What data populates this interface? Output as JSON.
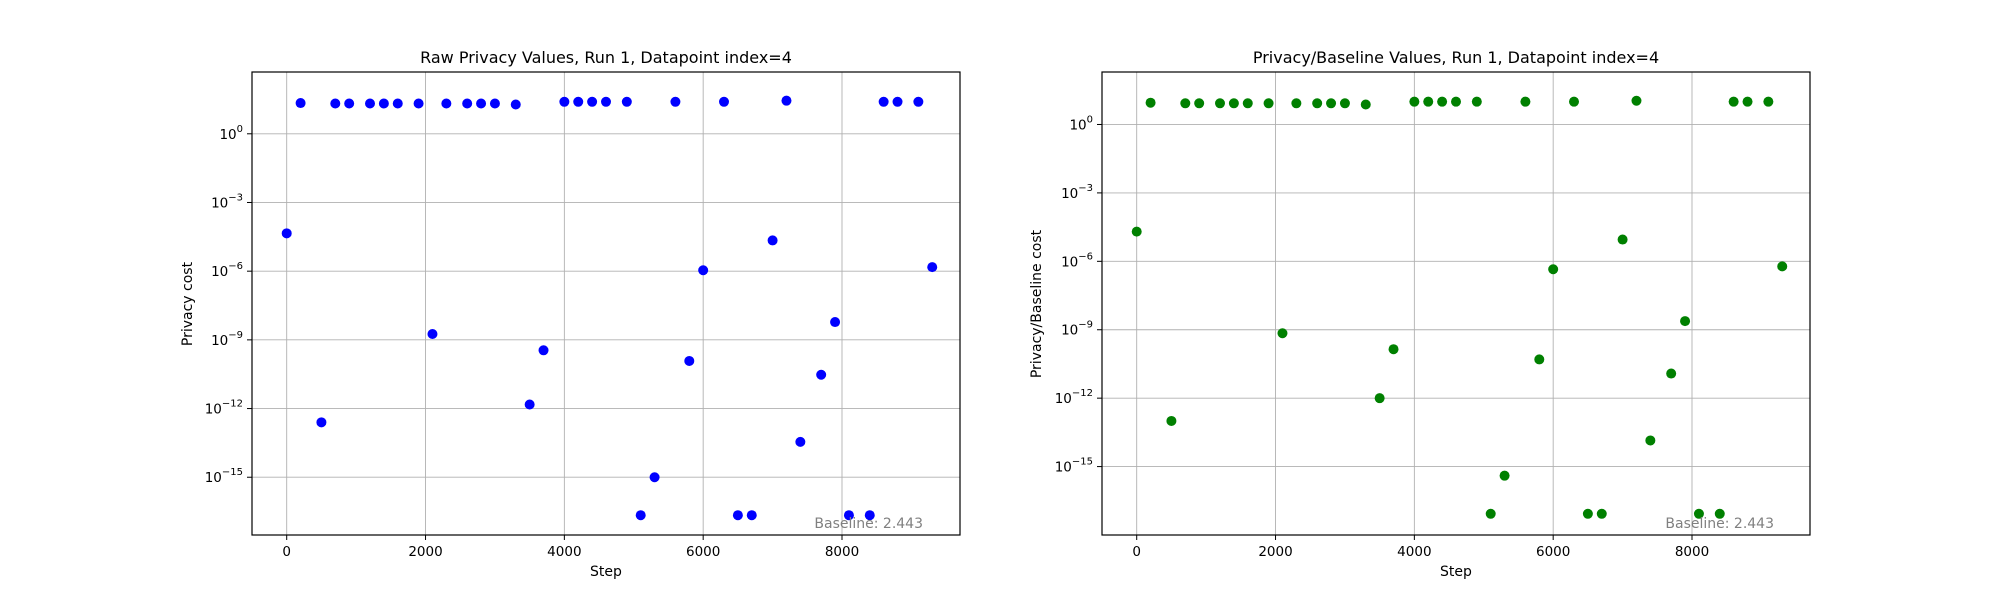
{
  "chart_data": [
    {
      "type": "scatter",
      "title": "Raw Privacy Values, Run 1, Datapoint index=4",
      "xlabel": "Step",
      "ylabel": "Privacy cost",
      "yscale": "log",
      "grid": true,
      "color": "#0000ff",
      "annotation": "Baseline: 2.443",
      "xlim": [
        -500,
        9700
      ],
      "ylim": [
        3e-18,
        500.0
      ],
      "xticks": [
        0,
        2000,
        4000,
        6000,
        8000
      ],
      "xtick_labels": [
        "0",
        "2000",
        "4000",
        "6000",
        "8000"
      ],
      "yticks": [
        1.0,
        0.001,
        1e-06,
        1e-09,
        1e-12,
        1e-15
      ],
      "ytick_labels": [
        {
          "base": "10",
          "exp": "0"
        },
        {
          "base": "10",
          "exp": "−3"
        },
        {
          "base": "10",
          "exp": "−6"
        },
        {
          "base": "10",
          "exp": "−9"
        },
        {
          "base": "10",
          "exp": "−12"
        },
        {
          "base": "10",
          "exp": "−15"
        }
      ],
      "points": [
        {
          "x": 0,
          "y": 4.5e-05
        },
        {
          "x": 200,
          "y": 22
        },
        {
          "x": 500,
          "y": 2.5e-13
        },
        {
          "x": 700,
          "y": 21
        },
        {
          "x": 900,
          "y": 21
        },
        {
          "x": 1200,
          "y": 21
        },
        {
          "x": 1400,
          "y": 21
        },
        {
          "x": 1600,
          "y": 21
        },
        {
          "x": 1900,
          "y": 21
        },
        {
          "x": 2100,
          "y": 1.8e-09
        },
        {
          "x": 2300,
          "y": 21
        },
        {
          "x": 2600,
          "y": 21
        },
        {
          "x": 2800,
          "y": 21
        },
        {
          "x": 3000,
          "y": 21
        },
        {
          "x": 3300,
          "y": 19
        },
        {
          "x": 3500,
          "y": 1.5e-12
        },
        {
          "x": 3700,
          "y": 3.5e-10
        },
        {
          "x": 4000,
          "y": 25
        },
        {
          "x": 4200,
          "y": 25
        },
        {
          "x": 4400,
          "y": 25
        },
        {
          "x": 4600,
          "y": 25
        },
        {
          "x": 4900,
          "y": 25
        },
        {
          "x": 5100,
          "y": 2.2e-17
        },
        {
          "x": 5300,
          "y": 1e-15
        },
        {
          "x": 5600,
          "y": 25
        },
        {
          "x": 5800,
          "y": 1.2e-10
        },
        {
          "x": 6000,
          "y": 1.1e-06
        },
        {
          "x": 6300,
          "y": 25
        },
        {
          "x": 6500,
          "y": 2.2e-17
        },
        {
          "x": 6700,
          "y": 2.2e-17
        },
        {
          "x": 7000,
          "y": 2.2e-05
        },
        {
          "x": 7200,
          "y": 28
        },
        {
          "x": 7400,
          "y": 3.5e-14
        },
        {
          "x": 7700,
          "y": 3e-11
        },
        {
          "x": 7900,
          "y": 6e-09
        },
        {
          "x": 8100,
          "y": 2.2e-17
        },
        {
          "x": 8400,
          "y": 2.2e-17
        },
        {
          "x": 8600,
          "y": 25
        },
        {
          "x": 8800,
          "y": 25
        },
        {
          "x": 9100,
          "y": 25
        },
        {
          "x": 9300,
          "y": 1.5e-06
        }
      ]
    },
    {
      "type": "scatter",
      "title": "Privacy/Baseline Values, Run 1, Datapoint index=4",
      "xlabel": "Step",
      "ylabel": "Privacy/Baseline cost",
      "yscale": "log",
      "grid": true,
      "color": "#008000",
      "annotation": "Baseline: 2.443",
      "xlim": [
        -500,
        9700
      ],
      "ylim": [
        1e-18,
        200.0
      ],
      "xticks": [
        0,
        2000,
        4000,
        6000,
        8000
      ],
      "xtick_labels": [
        "0",
        "2000",
        "4000",
        "6000",
        "8000"
      ],
      "yticks": [
        1.0,
        0.001,
        1e-06,
        1e-09,
        1e-12,
        1e-15
      ],
      "ytick_labels": [
        {
          "base": "10",
          "exp": "0"
        },
        {
          "base": "10",
          "exp": "−3"
        },
        {
          "base": "10",
          "exp": "−6"
        },
        {
          "base": "10",
          "exp": "−9"
        },
        {
          "base": "10",
          "exp": "−12"
        },
        {
          "base": "10",
          "exp": "−15"
        }
      ],
      "points": [
        {
          "x": 0,
          "y": 2e-05
        },
        {
          "x": 200,
          "y": 9
        },
        {
          "x": 500,
          "y": 1e-13
        },
        {
          "x": 700,
          "y": 8.5
        },
        {
          "x": 900,
          "y": 8.5
        },
        {
          "x": 1200,
          "y": 8.5
        },
        {
          "x": 1400,
          "y": 8.5
        },
        {
          "x": 1600,
          "y": 8.5
        },
        {
          "x": 1900,
          "y": 8.5
        },
        {
          "x": 2100,
          "y": 7e-10
        },
        {
          "x": 2300,
          "y": 8.5
        },
        {
          "x": 2600,
          "y": 8.5
        },
        {
          "x": 2800,
          "y": 8.5
        },
        {
          "x": 3000,
          "y": 8.5
        },
        {
          "x": 3300,
          "y": 7.5
        },
        {
          "x": 3500,
          "y": 1e-12
        },
        {
          "x": 3700,
          "y": 1.4e-10
        },
        {
          "x": 4000,
          "y": 10
        },
        {
          "x": 4200,
          "y": 10
        },
        {
          "x": 4400,
          "y": 10
        },
        {
          "x": 4600,
          "y": 10
        },
        {
          "x": 4900,
          "y": 10
        },
        {
          "x": 5100,
          "y": 8.5e-18
        },
        {
          "x": 5300,
          "y": 4e-16
        },
        {
          "x": 5600,
          "y": 10
        },
        {
          "x": 5800,
          "y": 5e-11
        },
        {
          "x": 6000,
          "y": 4.5e-07
        },
        {
          "x": 6300,
          "y": 10
        },
        {
          "x": 6500,
          "y": 8.5e-18
        },
        {
          "x": 6700,
          "y": 8.5e-18
        },
        {
          "x": 7000,
          "y": 9e-06
        },
        {
          "x": 7200,
          "y": 11
        },
        {
          "x": 7400,
          "y": 1.4e-14
        },
        {
          "x": 7700,
          "y": 1.2e-11
        },
        {
          "x": 7900,
          "y": 2.4e-09
        },
        {
          "x": 8100,
          "y": 8.5e-18
        },
        {
          "x": 8400,
          "y": 8.5e-18
        },
        {
          "x": 8600,
          "y": 10
        },
        {
          "x": 8800,
          "y": 10
        },
        {
          "x": 9100,
          "y": 10
        },
        {
          "x": 9300,
          "y": 6e-07
        }
      ]
    }
  ]
}
